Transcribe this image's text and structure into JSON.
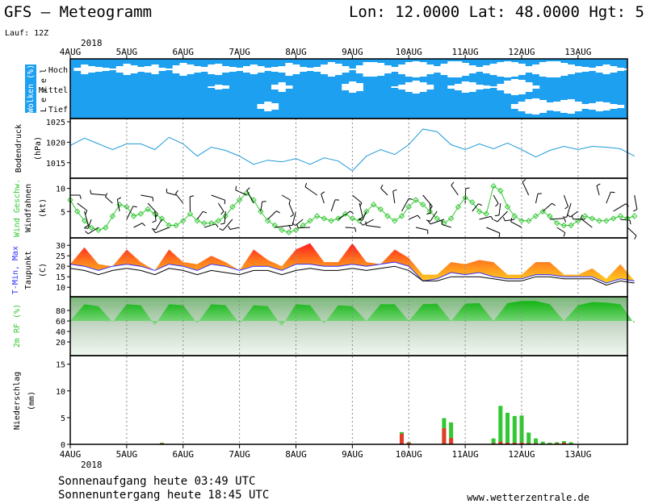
{
  "header": {
    "title": "GFS – Meteogramm",
    "location": "Lon: 12.0000 Lat: 48.0000 Hgt: 5",
    "run": "Lauf: 12Z",
    "year_top": "2018",
    "year_bottom": "2018"
  },
  "footer": {
    "sunrise": "Sonnenaufgang heute 03:49 UTC",
    "sunset": "Sonnenuntergang heute 18:45 UTC",
    "site": "www.wetterzentrale.de"
  },
  "colors": {
    "cloud_bg": "#1ea0f0",
    "pressure": "#1e9ad8",
    "wind": "#32c832",
    "tmax": "#ff2828",
    "tmin": "#3232ff",
    "dewpoint": "#000000",
    "humidity": "#32c832",
    "precip_total": "#32c832",
    "precip_conv": "#e03c28"
  },
  "chart_data": [
    {
      "type": "area",
      "panel": "clouds",
      "ylabel": "Wolken (%)",
      "ylabel2": "L e v e l",
      "levels": [
        "Hoch",
        "Mittel",
        "Tief"
      ],
      "x": [
        0,
        3,
        6,
        9,
        12,
        15,
        18,
        21,
        24,
        27,
        30,
        33,
        36,
        39,
        42,
        45,
        48,
        51,
        54,
        57,
        60,
        63,
        66,
        69,
        72,
        75,
        78,
        81,
        84,
        87,
        90,
        93,
        96,
        99,
        102,
        105,
        108,
        111,
        114,
        117,
        120,
        123,
        126,
        129,
        132,
        135,
        138,
        141,
        144,
        147,
        150,
        153,
        156,
        159,
        162,
        165,
        168,
        171,
        174,
        177,
        180,
        183,
        186,
        189,
        192,
        195,
        198,
        201,
        204,
        207,
        210,
        213,
        216,
        219,
        222,
        225,
        228,
        231,
        234,
        237
      ],
      "hoch": [
        0,
        20,
        60,
        40,
        30,
        20,
        10,
        40,
        70,
        50,
        30,
        40,
        60,
        20,
        10,
        50,
        80,
        60,
        40,
        30,
        60,
        70,
        40,
        30,
        20,
        40,
        60,
        40,
        20,
        30,
        40,
        80,
        60,
        30,
        20,
        30,
        60,
        90,
        70,
        40,
        10,
        50,
        90,
        90,
        80,
        50,
        30,
        60,
        90,
        100,
        90,
        60,
        40,
        70,
        100,
        100,
        80,
        50,
        30,
        50,
        70,
        90,
        100,
        90,
        70,
        40,
        60,
        90,
        100,
        100,
        80,
        60,
        40,
        30,
        20,
        40,
        60,
        40,
        20,
        10
      ],
      "mittel": [
        0,
        0,
        0,
        0,
        0,
        0,
        0,
        0,
        0,
        0,
        0,
        0,
        0,
        0,
        0,
        0,
        0,
        0,
        0,
        0,
        10,
        30,
        20,
        0,
        0,
        0,
        0,
        0,
        0,
        30,
        60,
        20,
        0,
        0,
        0,
        0,
        0,
        0,
        0,
        40,
        70,
        50,
        0,
        0,
        0,
        0,
        10,
        30,
        60,
        80,
        60,
        30,
        0,
        0,
        20,
        40,
        70,
        60,
        30,
        20,
        10,
        40,
        80,
        100,
        90,
        60,
        20,
        0,
        0,
        0,
        0,
        0,
        0,
        0,
        0,
        0,
        0,
        0,
        0,
        0
      ],
      "tief": [
        0,
        0,
        0,
        0,
        0,
        0,
        0,
        0,
        0,
        0,
        0,
        0,
        0,
        0,
        0,
        0,
        0,
        0,
        0,
        0,
        0,
        0,
        0,
        0,
        0,
        0,
        0,
        30,
        60,
        40,
        0,
        0,
        0,
        0,
        0,
        0,
        0,
        0,
        0,
        0,
        0,
        0,
        0,
        0,
        0,
        0,
        0,
        0,
        0,
        0,
        0,
        0,
        0,
        0,
        0,
        0,
        0,
        0,
        0,
        0,
        0,
        0,
        0,
        30,
        60,
        90,
        100,
        80,
        50,
        60,
        80,
        90,
        60,
        30,
        40,
        60,
        50,
        30,
        20,
        0
      ]
    },
    {
      "type": "line",
      "panel": "pressure",
      "ylabel": "Bodendruck",
      "ylabel2": "(hPa)",
      "yticks": [
        1015,
        1020,
        1025
      ],
      "ylim": [
        1012,
        1025
      ],
      "x": [
        0,
        6,
        12,
        18,
        24,
        30,
        36,
        42,
        48,
        54,
        60,
        66,
        72,
        78,
        84,
        90,
        96,
        102,
        108,
        114,
        120,
        126,
        132,
        138,
        144,
        150,
        156,
        162,
        168,
        174,
        180,
        186,
        192,
        198,
        204,
        210,
        216,
        222,
        228,
        234,
        240
      ],
      "values": [
        1019.2,
        1021.0,
        1019.6,
        1018.2,
        1019.6,
        1019.6,
        1018.2,
        1021.2,
        1019.6,
        1016.6,
        1018.8,
        1018.0,
        1016.6,
        1014.6,
        1015.6,
        1015.2,
        1016.0,
        1014.6,
        1016.2,
        1015.4,
        1013.0,
        1016.6,
        1018.2,
        1017.0,
        1019.4,
        1023.2,
        1022.6,
        1019.4,
        1018.2,
        1019.6,
        1018.4,
        1019.8,
        1018.2,
        1016.4,
        1018.0,
        1019.0,
        1018.2,
        1019.0,
        1018.8,
        1018.4,
        1016.6
      ]
    },
    {
      "type": "line",
      "panel": "wind",
      "ylabel": "Wind Geschw.",
      "ylabel2": "Windfahnen",
      "ylabel3": "(kt)",
      "yticks": [
        5,
        10
      ],
      "ylim": [
        0,
        11.5
      ],
      "x": [
        0,
        3,
        6,
        9,
        12,
        15,
        18,
        21,
        24,
        27,
        30,
        33,
        36,
        39,
        42,
        45,
        48,
        51,
        54,
        57,
        60,
        63,
        66,
        69,
        72,
        75,
        78,
        81,
        84,
        87,
        90,
        93,
        96,
        99,
        102,
        105,
        108,
        111,
        114,
        117,
        120,
        123,
        126,
        129,
        132,
        135,
        138,
        141,
        144,
        147,
        150,
        153,
        156,
        159,
        162,
        165,
        168,
        171,
        174,
        177,
        180,
        183,
        186,
        189,
        192,
        195,
        198,
        201,
        204,
        207,
        210,
        213,
        216,
        219,
        222,
        225,
        228,
        231,
        234,
        237,
        240
      ],
      "values": [
        7.5,
        5,
        3,
        1.5,
        1,
        1.5,
        4,
        6.5,
        6,
        4,
        4.5,
        5.5,
        4.5,
        3.5,
        2,
        2,
        3,
        4.5,
        3,
        2.5,
        2.5,
        3,
        4,
        6,
        7.5,
        9,
        7.5,
        5,
        3,
        2,
        1,
        0.5,
        1,
        2,
        3,
        4,
        3.5,
        3,
        3.5,
        4.5,
        3.5,
        3,
        5,
        6.5,
        5.5,
        4,
        3,
        4,
        6,
        7.5,
        6.5,
        5,
        3.5,
        2.5,
        3.5,
        6,
        8,
        7,
        5,
        4.5,
        10.5,
        9.5,
        6,
        4,
        3,
        3,
        4,
        5,
        4,
        2.5,
        2,
        2,
        3,
        4,
        3.5,
        3,
        3,
        3.5,
        4,
        3.5,
        4
      ]
    },
    {
      "type": "line",
      "panel": "temperature",
      "ylabel": "T-Min, Max",
      "ylabel2": "Taupunkt",
      "ylabel3": "(C)",
      "yticks": [
        10,
        15,
        20,
        25,
        30
      ],
      "ylim": [
        7,
        32
      ],
      "x": [
        0,
        6,
        12,
        18,
        24,
        30,
        36,
        42,
        48,
        54,
        60,
        66,
        72,
        78,
        84,
        90,
        96,
        102,
        108,
        114,
        120,
        126,
        132,
        138,
        144,
        150,
        156,
        162,
        168,
        174,
        180,
        186,
        192,
        198,
        204,
        210,
        216,
        222,
        228,
        234,
        240
      ],
      "tmax": [
        21,
        29,
        21,
        20,
        28,
        22,
        18,
        28,
        22,
        21,
        25,
        22,
        18,
        28,
        23,
        20,
        28,
        31,
        22,
        22,
        31,
        22,
        21,
        28,
        24,
        16,
        16,
        22,
        21,
        23,
        22,
        16,
        16,
        22,
        22,
        16,
        16,
        19,
        14,
        21,
        13
      ],
      "tmin": [
        21,
        20,
        18,
        20,
        21,
        20,
        18,
        21,
        20,
        18,
        21,
        20,
        18,
        20,
        20,
        18,
        21,
        21,
        20,
        20,
        21,
        20,
        21,
        22,
        20,
        13,
        14,
        17,
        16,
        17,
        15,
        14,
        14,
        16,
        16,
        15,
        15,
        15,
        12,
        14,
        13
      ],
      "dewpoint": [
        19,
        18,
        16,
        18,
        19,
        18,
        16,
        19,
        18,
        16,
        18,
        17,
        16,
        18,
        18,
        16,
        18,
        19,
        18,
        18,
        19,
        18,
        19,
        20,
        18,
        13,
        13,
        15,
        15,
        15,
        14,
        13,
        13,
        15,
        15,
        14,
        14,
        14,
        11,
        13,
        12
      ]
    },
    {
      "type": "area",
      "panel": "humidity",
      "ylabel": "2m RF (%)",
      "yticks": [
        20,
        40,
        60,
        80
      ],
      "ylim": [
        0,
        100
      ],
      "x": [
        0,
        6,
        12,
        18,
        24,
        30,
        36,
        42,
        48,
        54,
        60,
        66,
        72,
        78,
        84,
        90,
        96,
        102,
        108,
        114,
        120,
        126,
        132,
        138,
        144,
        150,
        156,
        162,
        168,
        174,
        180,
        186,
        192,
        198,
        204,
        210,
        216,
        222,
        228,
        234,
        240
      ],
      "values": [
        60,
        92,
        88,
        58,
        92,
        90,
        52,
        92,
        90,
        56,
        92,
        90,
        55,
        90,
        88,
        50,
        92,
        90,
        55,
        90,
        88,
        60,
        92,
        92,
        60,
        92,
        93,
        60,
        93,
        94,
        60,
        94,
        98,
        98,
        92,
        60,
        90,
        96,
        95,
        92,
        55
      ]
    },
    {
      "type": "bar",
      "panel": "precipitation",
      "ylabel": "Niederschlag",
      "ylabel2": "(mm)",
      "yticks": [
        0,
        5,
        10,
        15
      ],
      "ylim": [
        0,
        16
      ],
      "x": [
        39,
        141,
        144,
        159,
        162,
        180,
        183,
        186,
        189,
        192,
        195,
        198,
        201,
        204,
        207,
        210,
        213
      ],
      "total": [
        0.3,
        2.3,
        0.4,
        4.9,
        4.1,
        1.1,
        7.2,
        5.9,
        5.3,
        5.4,
        2.2,
        1.1,
        0.5,
        0.3,
        0.4,
        0.6,
        0.4
      ],
      "convective": [
        0.2,
        2.0,
        0.3,
        3.0,
        1.2,
        0.2,
        0.5,
        0.3,
        0.3,
        0.3,
        0.2,
        0.2,
        0.1,
        0.1,
        0.2,
        0.3,
        0.1
      ]
    }
  ],
  "xaxis": {
    "day_ticks_hours": [
      0,
      24,
      48,
      72,
      96,
      120,
      144,
      168,
      192,
      216
    ],
    "day_labels": [
      "4AUG",
      "5AUG",
      "6AUG",
      "7AUG",
      "8AUG",
      "9AUG",
      "10AUG",
      "11AUG",
      "12AUG",
      "13AUG"
    ]
  }
}
